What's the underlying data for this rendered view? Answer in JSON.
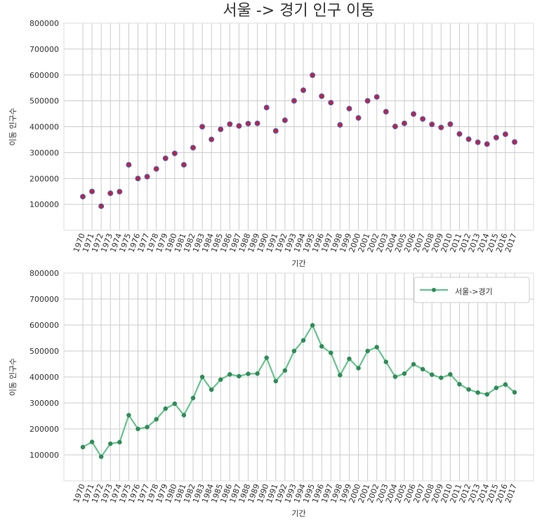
{
  "colors": {
    "grid": "#cccccc",
    "frame": "#dddddd",
    "marker_fill": "#c41e3a",
    "marker_edge": "#5b5bb0",
    "line": "#66c48d",
    "line_marker": "#2e8b57"
  },
  "chart_data": [
    {
      "type": "scatter",
      "title": "서울 -> 경기 인구 이동",
      "xlabel": "기간",
      "ylabel": "이동 인구수",
      "ylim": [
        0,
        800000
      ],
      "yticks": [
        100000,
        200000,
        300000,
        400000,
        500000,
        600000,
        700000,
        800000
      ],
      "ytick_labels": [
        "100000",
        "200000",
        "300000",
        "400000",
        "500000",
        "600000",
        "700000",
        "800000"
      ],
      "grid": true,
      "x": [
        "1970",
        "1971",
        "1972",
        "1973",
        "1974",
        "1975",
        "1976",
        "1977",
        "1978",
        "1979",
        "1980",
        "1981",
        "1982",
        "1983",
        "1984",
        "1985",
        "1986",
        "1987",
        "1988",
        "1989",
        "1990",
        "1991",
        "1992",
        "1993",
        "1994",
        "1995",
        "1996",
        "1997",
        "1998",
        "1999",
        "2000",
        "2001",
        "2002",
        "2003",
        "2004",
        "2005",
        "2006",
        "2007",
        "2008",
        "2009",
        "2010",
        "2011",
        "2012",
        "2013",
        "2014",
        "2015",
        "2016",
        "2017"
      ],
      "series": [
        {
          "values": [
            130000,
            150000,
            93000,
            143000,
            149000,
            253000,
            200000,
            207000,
            237000,
            278000,
            297000,
            253000,
            319000,
            400000,
            351000,
            390000,
            410000,
            403000,
            412000,
            413000,
            474000,
            384000,
            425000,
            500000,
            541000,
            599000,
            518000,
            493000,
            407000,
            470000,
            434000,
            500000,
            515000,
            458000,
            401000,
            413000,
            449000,
            430000,
            409000,
            397000,
            410000,
            372000,
            352000,
            340000,
            333000,
            358000,
            371000,
            341000
          ]
        }
      ]
    },
    {
      "type": "line",
      "title": "",
      "xlabel": "기간",
      "ylabel": "이동 인구수",
      "ylim": [
        0,
        800000
      ],
      "yticks": [
        100000,
        200000,
        300000,
        400000,
        500000,
        600000,
        700000,
        800000
      ],
      "ytick_labels": [
        "100000",
        "200000",
        "300000",
        "400000",
        "500000",
        "600000",
        "700000",
        "800000"
      ],
      "grid": true,
      "legend": "top-right",
      "x": [
        "1970",
        "1971",
        "1972",
        "1973",
        "1974",
        "1975",
        "1976",
        "1977",
        "1978",
        "1979",
        "1980",
        "1981",
        "1982",
        "1983",
        "1984",
        "1985",
        "1986",
        "1987",
        "1988",
        "1989",
        "1990",
        "1991",
        "1992",
        "1993",
        "1994",
        "1995",
        "1996",
        "1997",
        "1998",
        "1999",
        "2000",
        "2001",
        "2002",
        "2003",
        "2004",
        "2005",
        "2006",
        "2007",
        "2008",
        "2009",
        "2010",
        "2011",
        "2012",
        "2013",
        "2014",
        "2015",
        "2016",
        "2017"
      ],
      "series": [
        {
          "name": "서울->경기",
          "values": [
            130000,
            150000,
            93000,
            143000,
            149000,
            253000,
            200000,
            207000,
            237000,
            278000,
            297000,
            253000,
            319000,
            400000,
            351000,
            390000,
            410000,
            403000,
            412000,
            413000,
            474000,
            384000,
            425000,
            500000,
            541000,
            599000,
            518000,
            493000,
            407000,
            470000,
            434000,
            500000,
            515000,
            458000,
            401000,
            413000,
            449000,
            430000,
            409000,
            397000,
            410000,
            372000,
            352000,
            340000,
            333000,
            358000,
            371000,
            341000
          ]
        }
      ]
    }
  ]
}
